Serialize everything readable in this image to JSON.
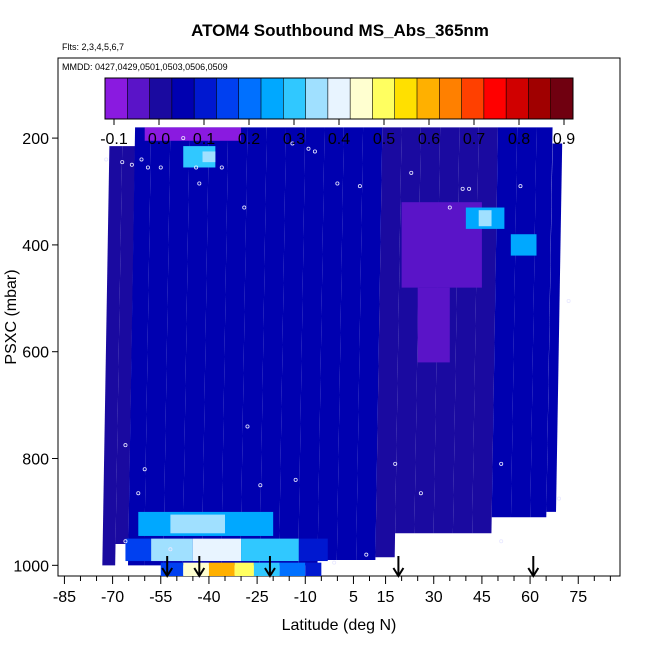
{
  "chart_data": {
    "type": "heatmap",
    "title": "ATOM4 Southbound MS_Abs_365nm",
    "flights_note": "Flts: 2,3,4,5,6,7",
    "dates_note": "MMDD: 0427,0429,0501,0503,0506,0509",
    "xlabel": "Latitude (deg N)",
    "ylabel": "PSXC (mbar)",
    "xlim": [
      -87,
      88
    ],
    "ylim": [
      1020,
      50
    ],
    "x_ticks": [
      -85,
      -70,
      -55,
      -40,
      -25,
      -10,
      5,
      15,
      30,
      45,
      60,
      75
    ],
    "x_minor_ticks": [
      -80,
      -75,
      -65,
      -60,
      -50,
      -45,
      -35,
      -30,
      -20,
      -15,
      -5,
      0,
      10,
      20,
      25,
      35,
      40,
      50,
      55,
      65,
      70,
      80,
      85
    ],
    "y_ticks": [
      200,
      400,
      600,
      800,
      1000
    ],
    "colorbar": {
      "ticks": [
        "-0.1",
        "0.0",
        "0.1",
        "0.2",
        "0.3",
        "0.4",
        "0.5",
        "0.6",
        "0.7",
        "0.8",
        "0.9"
      ],
      "min": -0.12,
      "max": 0.92,
      "colors": [
        "#8a1ae0",
        "#5a14c8",
        "#1a0aa0",
        "#0000b0",
        "#0018d0",
        "#0040f0",
        "#0070ff",
        "#00a8ff",
        "#30c8ff",
        "#a0e0ff",
        "#e8f4ff",
        "#ffffd0",
        "#ffff60",
        "#ffe000",
        "#ffb000",
        "#ff8000",
        "#ff4000",
        "#ff0000",
        "#d00000",
        "#a00000",
        "#700010"
      ]
    },
    "profiles": [
      {
        "x1": -71,
        "x2": -67,
        "p_top": 215,
        "p_bot": 1000,
        "value": 0.02
      },
      {
        "x1": -67,
        "x2": -63,
        "p_top": 215,
        "p_bot": 960,
        "value": 0.02
      },
      {
        "x1": -63,
        "x2": -58,
        "p_top": 180,
        "p_bot": 1000,
        "value": 0.03
      },
      {
        "x1": -58,
        "x2": -52,
        "p_top": 180,
        "p_bot": 1000,
        "value": 0.03
      },
      {
        "x1": -52,
        "x2": -46,
        "p_top": 180,
        "p_bot": 1000,
        "value": 0.03
      },
      {
        "x1": -46,
        "x2": -40,
        "p_top": 180,
        "p_bot": 1000,
        "value": 0.03
      },
      {
        "x1": -40,
        "x2": -34,
        "p_top": 180,
        "p_bot": 1000,
        "value": 0.03
      },
      {
        "x1": -34,
        "x2": -28,
        "p_top": 180,
        "p_bot": 1000,
        "value": 0.03
      },
      {
        "x1": -28,
        "x2": -22,
        "p_top": 180,
        "p_bot": 1000,
        "value": 0.04
      },
      {
        "x1": -22,
        "x2": -16,
        "p_top": 180,
        "p_bot": 1000,
        "value": 0.04
      },
      {
        "x1": -16,
        "x2": -10,
        "p_top": 180,
        "p_bot": 1000,
        "value": 0.04
      },
      {
        "x1": -10,
        "x2": -4,
        "p_top": 180,
        "p_bot": 1000,
        "value": 0.04
      },
      {
        "x1": -4,
        "x2": 2,
        "p_top": 180,
        "p_bot": 990,
        "value": 0.04
      },
      {
        "x1": 2,
        "x2": 8,
        "p_top": 180,
        "p_bot": 990,
        "value": 0.04
      },
      {
        "x1": 8,
        "x2": 14,
        "p_top": 180,
        "p_bot": 990,
        "value": 0.03
      },
      {
        "x1": 14,
        "x2": 20,
        "p_top": 180,
        "p_bot": 985,
        "value": 0.01
      },
      {
        "x1": 20,
        "x2": 26,
        "p_top": 180,
        "p_bot": 940,
        "value": 0.0
      },
      {
        "x1": 26,
        "x2": 32,
        "p_top": 180,
        "p_bot": 940,
        "value": -0.01
      },
      {
        "x1": 32,
        "x2": 38,
        "p_top": 180,
        "p_bot": 940,
        "value": 0.0
      },
      {
        "x1": 38,
        "x2": 44,
        "p_top": 180,
        "p_bot": 940,
        "value": 0.01
      },
      {
        "x1": 44,
        "x2": 50,
        "p_top": 180,
        "p_bot": 940,
        "value": 0.02
      },
      {
        "x1": 50,
        "x2": 56,
        "p_top": 180,
        "p_bot": 910,
        "value": 0.03
      },
      {
        "x1": 56,
        "x2": 62,
        "p_top": 180,
        "p_bot": 910,
        "value": 0.03
      },
      {
        "x1": 62,
        "x2": 67,
        "p_top": 180,
        "p_bot": 910,
        "value": 0.04
      },
      {
        "x1": 67,
        "x2": 70,
        "p_top": 210,
        "p_bot": 900,
        "value": 0.05
      }
    ],
    "features": [
      {
        "x1": -60,
        "x2": -30,
        "p_top": 180,
        "p_bot": 205,
        "value": -0.08
      },
      {
        "x1": -48,
        "x2": -38,
        "p_top": 215,
        "p_bot": 255,
        "value": 0.28
      },
      {
        "x1": -42,
        "x2": -38,
        "p_top": 225,
        "p_bot": 245,
        "value": 0.33
      },
      {
        "x1": 20,
        "x2": 45,
        "p_top": 320,
        "p_bot": 480,
        "value": -0.06
      },
      {
        "x1": 25,
        "x2": 35,
        "p_top": 480,
        "p_bot": 620,
        "value": -0.05
      },
      {
        "x1": 40,
        "x2": 52,
        "p_top": 330,
        "p_bot": 370,
        "value": 0.25
      },
      {
        "x1": 44,
        "x2": 48,
        "p_top": 335,
        "p_bot": 365,
        "value": 0.33
      },
      {
        "x1": 54,
        "x2": 62,
        "p_top": 380,
        "p_bot": 420,
        "value": 0.24
      },
      {
        "x1": -62,
        "x2": -20,
        "p_top": 900,
        "p_bot": 945,
        "value": 0.24
      },
      {
        "x1": -52,
        "x2": -35,
        "p_top": 905,
        "p_bot": 940,
        "value": 0.34
      },
      {
        "x1": -66,
        "x2": -58,
        "p_top": 950,
        "p_bot": 992,
        "value": 0.15
      },
      {
        "x1": -58,
        "x2": -45,
        "p_top": 950,
        "p_bot": 992,
        "value": 0.33
      },
      {
        "x1": -45,
        "x2": -30,
        "p_top": 950,
        "p_bot": 992,
        "value": 0.4
      },
      {
        "x1": -30,
        "x2": -12,
        "p_top": 950,
        "p_bot": 992,
        "value": 0.28
      },
      {
        "x1": -12,
        "x2": -3,
        "p_top": 950,
        "p_bot": 992,
        "value": 0.12
      },
      {
        "x1": -55,
        "x2": -48,
        "p_top": 995,
        "p_bot": 1020,
        "value": 0.15
      },
      {
        "x1": -48,
        "x2": -40,
        "p_top": 995,
        "p_bot": 1020,
        "value": 0.45
      },
      {
        "x1": -40,
        "x2": -32,
        "p_top": 995,
        "p_bot": 1020,
        "value": 0.62
      },
      {
        "x1": -32,
        "x2": -26,
        "p_top": 995,
        "p_bot": 1020,
        "value": 0.5
      },
      {
        "x1": -26,
        "x2": -18,
        "p_top": 995,
        "p_bot": 1020,
        "value": 0.3
      },
      {
        "x1": -18,
        "x2": -10,
        "p_top": 995,
        "p_bot": 1020,
        "value": 0.22
      },
      {
        "x1": -10,
        "x2": -5,
        "p_top": 995,
        "p_bot": 1020,
        "value": 0.1
      }
    ],
    "sample_points": [
      {
        "x": -72,
        "p": 240
      },
      {
        "x": -67,
        "p": 245
      },
      {
        "x": -64,
        "p": 250
      },
      {
        "x": -61,
        "p": 240
      },
      {
        "x": -59,
        "p": 255
      },
      {
        "x": -55,
        "p": 255
      },
      {
        "x": -48,
        "p": 200
      },
      {
        "x": -44,
        "p": 255
      },
      {
        "x": -43,
        "p": 285
      },
      {
        "x": -36,
        "p": 255
      },
      {
        "x": -29,
        "p": 330
      },
      {
        "x": -14,
        "p": 210
      },
      {
        "x": -9,
        "p": 220
      },
      {
        "x": -7,
        "p": 225
      },
      {
        "x": 0,
        "p": 285
      },
      {
        "x": 7,
        "p": 290
      },
      {
        "x": 23,
        "p": 265
      },
      {
        "x": 39,
        "p": 295
      },
      {
        "x": 41,
        "p": 295
      },
      {
        "x": 35,
        "p": 330
      },
      {
        "x": 57,
        "p": 290
      },
      {
        "x": 68,
        "p": 195
      },
      {
        "x": 72,
        "p": 505
      },
      {
        "x": -66,
        "p": 775
      },
      {
        "x": -60,
        "p": 820
      },
      {
        "x": -28,
        "p": 740
      },
      {
        "x": -24,
        "p": 850
      },
      {
        "x": -13,
        "p": 840
      },
      {
        "x": 18,
        "p": 810
      },
      {
        "x": 26,
        "p": 865
      },
      {
        "x": 51,
        "p": 810
      },
      {
        "x": 69,
        "p": 875
      },
      {
        "x": -62,
        "p": 865
      },
      {
        "x": -66,
        "p": 955
      },
      {
        "x": -52,
        "p": 970
      },
      {
        "x": -1,
        "p": 995
      },
      {
        "x": 9,
        "p": 980
      },
      {
        "x": 51,
        "p": 955
      }
    ],
    "drop_arrows": [
      -53,
      -43,
      -21,
      19,
      61
    ]
  }
}
